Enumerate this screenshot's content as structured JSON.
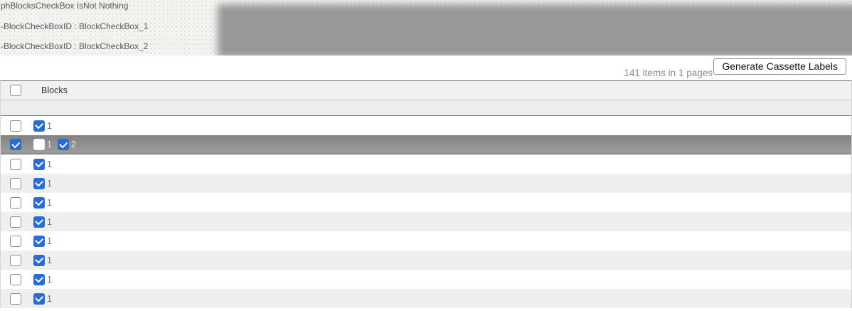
{
  "debug_log": {
    "lines": [
      "phBlocksCheckBox IsNot Nothing",
      "-BlockCheckBoxID : BlockCheckBox_1",
      "-BlockCheckBoxID : BlockCheckBox_2"
    ]
  },
  "toolbar": {
    "items_summary": "141 items in 1 pages",
    "generate_button_label": "Generate Cassette Labels"
  },
  "table": {
    "header": {
      "column_label": "Blocks",
      "select_all_checked": false
    },
    "rows": [
      {
        "selected": false,
        "row_checkbox_checked": false,
        "blocks": [
          {
            "label": "1",
            "checked": true
          }
        ]
      },
      {
        "selected": true,
        "row_checkbox_checked": true,
        "blocks": [
          {
            "label": "1",
            "checked": false
          },
          {
            "label": "2",
            "checked": true
          }
        ]
      },
      {
        "selected": false,
        "row_checkbox_checked": false,
        "blocks": [
          {
            "label": "1",
            "checked": true
          }
        ]
      },
      {
        "selected": false,
        "row_checkbox_checked": false,
        "blocks": [
          {
            "label": "1",
            "checked": true
          }
        ]
      },
      {
        "selected": false,
        "row_checkbox_checked": false,
        "blocks": [
          {
            "label": "1",
            "checked": true
          }
        ]
      },
      {
        "selected": false,
        "row_checkbox_checked": false,
        "blocks": [
          {
            "label": "1",
            "checked": true
          }
        ]
      },
      {
        "selected": false,
        "row_checkbox_checked": false,
        "blocks": [
          {
            "label": "1",
            "checked": true
          }
        ]
      },
      {
        "selected": false,
        "row_checkbox_checked": false,
        "blocks": [
          {
            "label": "1",
            "checked": true
          }
        ]
      },
      {
        "selected": false,
        "row_checkbox_checked": false,
        "blocks": [
          {
            "label": "1",
            "checked": true
          }
        ]
      },
      {
        "selected": false,
        "row_checkbox_checked": false,
        "blocks": [
          {
            "label": "1",
            "checked": true
          }
        ]
      }
    ]
  },
  "colors": {
    "accent_blue": "#2a6cd4",
    "selected_row_gray": "#8f8f8f",
    "grid_border_dark": "#6f6f6f"
  }
}
